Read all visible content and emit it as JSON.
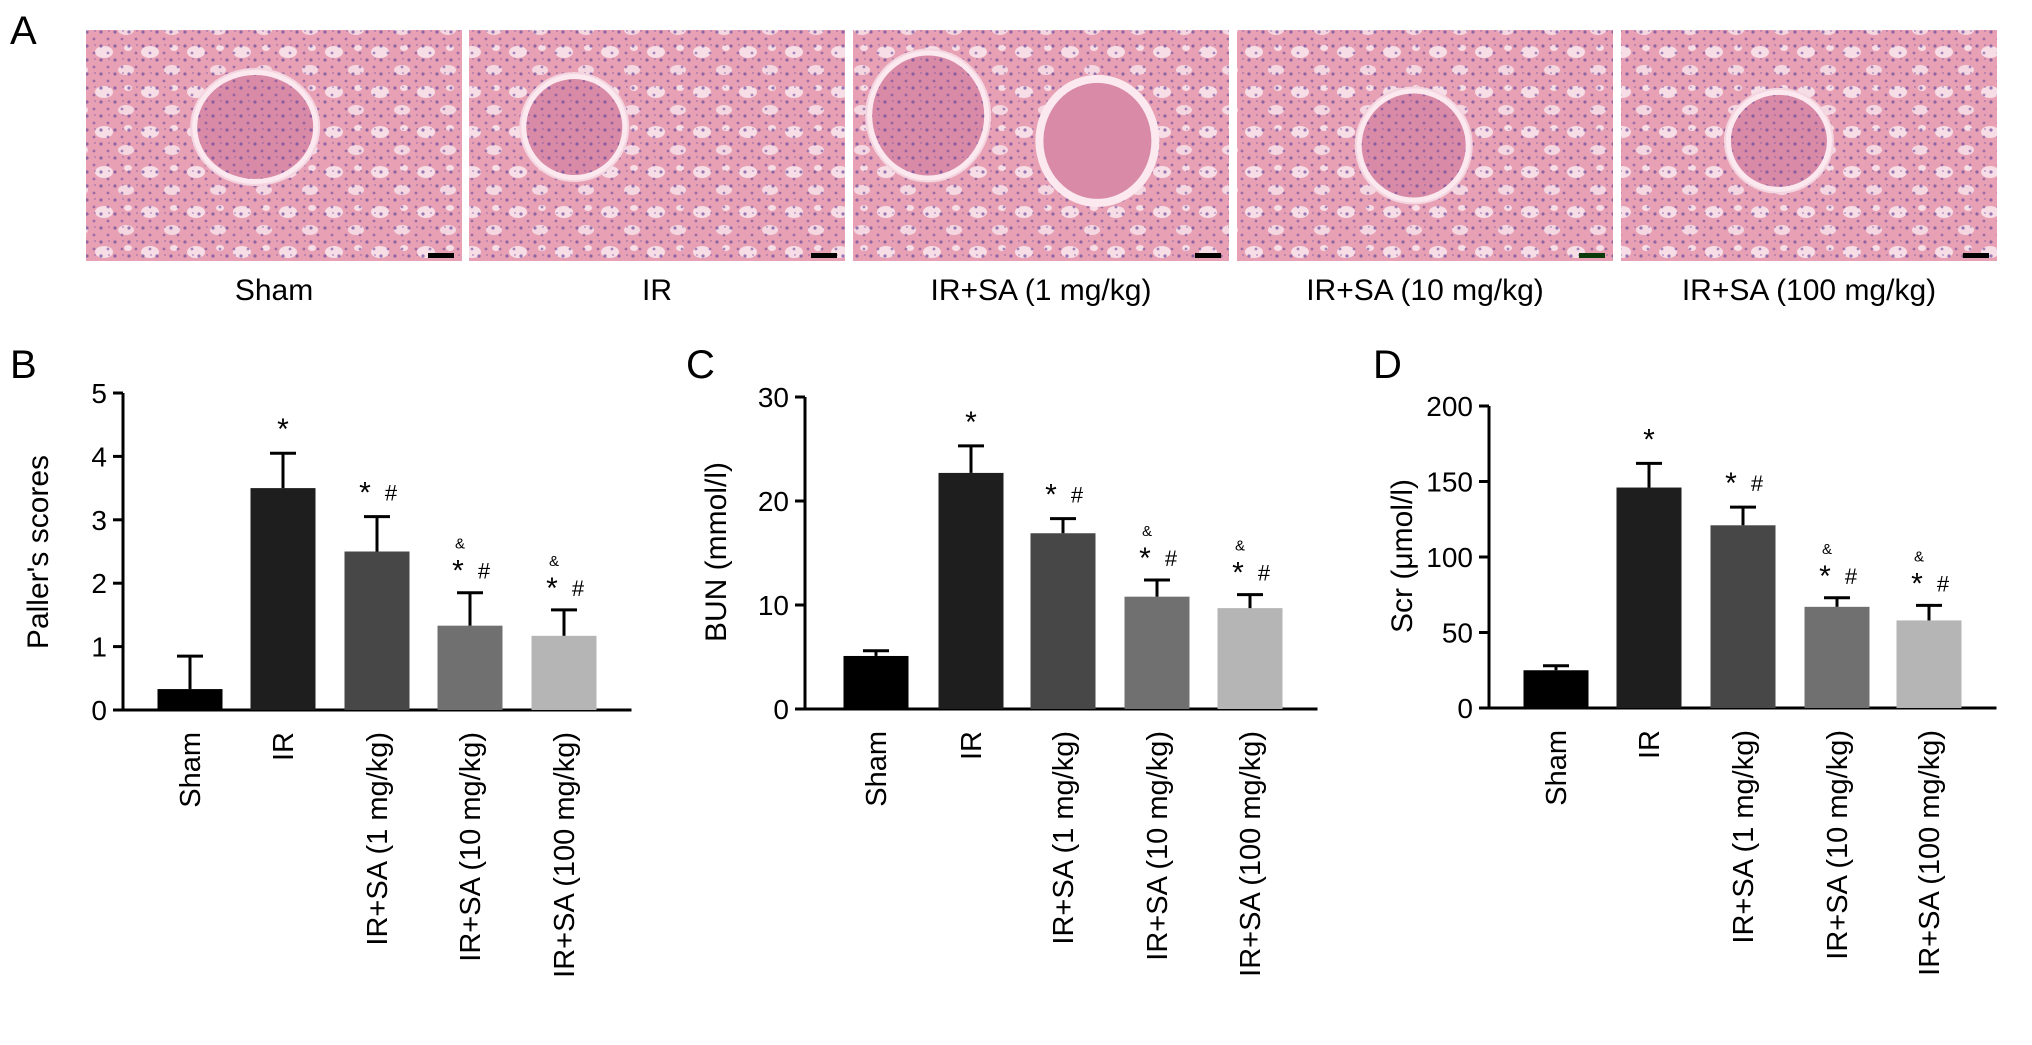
{
  "panel_letters": [
    "A",
    "B",
    "C",
    "D"
  ],
  "histology": {
    "captions": [
      "Sham",
      "IR",
      "IR+SA (1 mg/kg)",
      "IR+SA (10 mg/kg)",
      "IR+SA (100 mg/kg)"
    ],
    "tissue_color": "#e8a0b4",
    "nuclei_color": "#6a4a9c",
    "scale_bar_colors": [
      "#000000",
      "#000000",
      "#000000",
      "#0a3a0a",
      "#000000"
    ]
  },
  "chart_data": [
    {
      "panel": "B",
      "type": "bar",
      "categories": [
        "Sham",
        "IR",
        "IR+SA (1 mg/kg)",
        "IR+SA (10 mg/kg)",
        "IR+SA (100 mg/kg)"
      ],
      "values": [
        0.33,
        3.5,
        2.5,
        1.33,
        1.17
      ],
      "errors": [
        0.52,
        0.55,
        0.55,
        0.52,
        0.41
      ],
      "ylabel": "Paller's scores",
      "ylim": [
        0,
        5
      ],
      "yticks": [
        "0",
        "1",
        "2",
        "3",
        "4",
        "5"
      ],
      "annotations": [
        [],
        [
          "*"
        ],
        [
          "*",
          "#"
        ],
        [
          "&",
          "*",
          "#"
        ],
        [
          "&",
          "*",
          "#"
        ]
      ]
    },
    {
      "panel": "C",
      "type": "bar",
      "categories": [
        "Sham",
        "IR",
        "IR+SA (1 mg/kg)",
        "IR+SA (10 mg/kg)",
        "IR+SA (100 mg/kg)"
      ],
      "values": [
        5.1,
        22.7,
        16.9,
        10.8,
        9.7
      ],
      "errors": [
        0.5,
        2.6,
        1.4,
        1.6,
        1.3
      ],
      "ylabel": "BUN (mmol/l)",
      "ylim": [
        0,
        30
      ],
      "yticks": [
        "0",
        "10",
        "20",
        "30"
      ],
      "annotations": [
        [],
        [
          "*"
        ],
        [
          "*",
          "#"
        ],
        [
          "&",
          "*",
          "#"
        ],
        [
          "&",
          "*",
          "#"
        ]
      ]
    },
    {
      "panel": "D",
      "type": "bar",
      "categories": [
        "Sham",
        "IR",
        "IR+SA (1 mg/kg)",
        "IR+SA (10 mg/kg)",
        "IR+SA (100 mg/kg)"
      ],
      "values": [
        25,
        146,
        121,
        67,
        58
      ],
      "errors": [
        3,
        16,
        12,
        6,
        10
      ],
      "ylabel": "Scr (μmol/l)",
      "ylim": [
        0,
        200
      ],
      "yticks": [
        "0",
        "50",
        "100",
        "150",
        "200"
      ],
      "annotations": [
        [],
        [
          "*"
        ],
        [
          "*",
          "#"
        ],
        [
          "&",
          "*",
          "#"
        ],
        [
          "&",
          "*",
          "#"
        ]
      ]
    }
  ],
  "bar_colors": [
    "#000000",
    "#1e1e1e",
    "#474747",
    "#707070",
    "#b5b5b5"
  ]
}
